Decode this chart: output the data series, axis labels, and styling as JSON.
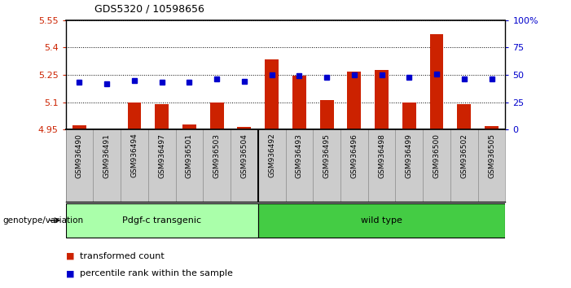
{
  "title": "GDS5320 / 10598656",
  "samples": [
    "GSM936490",
    "GSM936491",
    "GSM936494",
    "GSM936497",
    "GSM936501",
    "GSM936503",
    "GSM936504",
    "GSM936492",
    "GSM936493",
    "GSM936495",
    "GSM936496",
    "GSM936498",
    "GSM936499",
    "GSM936500",
    "GSM936502",
    "GSM936505"
  ],
  "transformed_count": [
    4.975,
    4.952,
    5.1,
    5.09,
    4.978,
    5.1,
    4.963,
    5.335,
    5.245,
    5.11,
    5.27,
    5.275,
    5.1,
    5.475,
    5.09,
    4.968
  ],
  "percentile_rank": [
    43,
    42,
    45,
    43,
    43,
    46,
    44,
    50,
    49,
    48,
    50,
    50,
    48,
    51,
    46,
    46
  ],
  "group_labels": [
    "Pdgf-c transgenic",
    "wild type"
  ],
  "group_colors": [
    "#aaffaa",
    "#44cc44"
  ],
  "group_splits": [
    7,
    9
  ],
  "ylim_left": [
    4.95,
    5.55
  ],
  "ylim_right": [
    0,
    100
  ],
  "yticks_left": [
    4.95,
    5.1,
    5.25,
    5.4,
    5.55
  ],
  "yticks_right": [
    0,
    25,
    50,
    75,
    100
  ],
  "ytick_labels_right": [
    "0",
    "25",
    "50",
    "75",
    "100%"
  ],
  "bar_color": "#cc2200",
  "dot_color": "#0000cc",
  "bar_bottom": 4.95,
  "legend_items": [
    {
      "label": "transformed count",
      "color": "#cc2200"
    },
    {
      "label": "percentile rank within the sample",
      "color": "#0000cc"
    }
  ],
  "group_annotation": "genotype/variation",
  "label_bg_color": "#cccccc",
  "label_border_color": "#888888"
}
